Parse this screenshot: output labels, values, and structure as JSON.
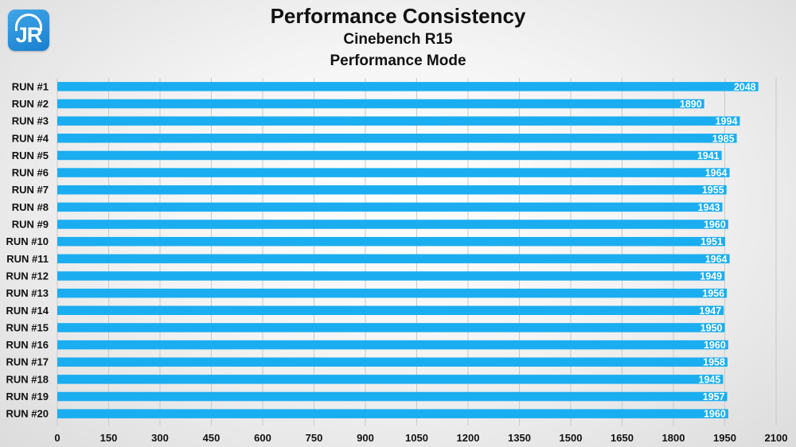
{
  "logo": {
    "text": "JR"
  },
  "colors": {
    "bar": "#1aaef0",
    "grid": "#c9c9c9",
    "label_text": "#111111",
    "value_text": "#ffffff"
  },
  "chart_data": {
    "type": "bar",
    "orientation": "horizontal",
    "title": "Performance Consistency",
    "subtitle": [
      "Cinebench R15",
      "Performance Mode"
    ],
    "categories": [
      "RUN #1",
      "RUN #2",
      "RUN #3",
      "RUN #4",
      "RUN #5",
      "RUN #6",
      "RUN #7",
      "RUN #8",
      "RUN #9",
      "RUN #10",
      "RUN #11",
      "RUN #12",
      "RUN #13",
      "RUN #14",
      "RUN #15",
      "RUN #16",
      "RUN #17",
      "RUN #18",
      "RUN #19",
      "RUN #20"
    ],
    "values": [
      2048,
      1890,
      1994,
      1985,
      1941,
      1964,
      1955,
      1943,
      1960,
      1951,
      1964,
      1949,
      1956,
      1947,
      1950,
      1960,
      1958,
      1945,
      1957,
      1960
    ],
    "xlim": [
      0,
      2100
    ],
    "xticks": [
      0,
      150,
      300,
      450,
      600,
      750,
      900,
      1050,
      1200,
      1350,
      1500,
      1650,
      1800,
      1950,
      2100
    ],
    "grid": "vertical",
    "legend": "none"
  }
}
